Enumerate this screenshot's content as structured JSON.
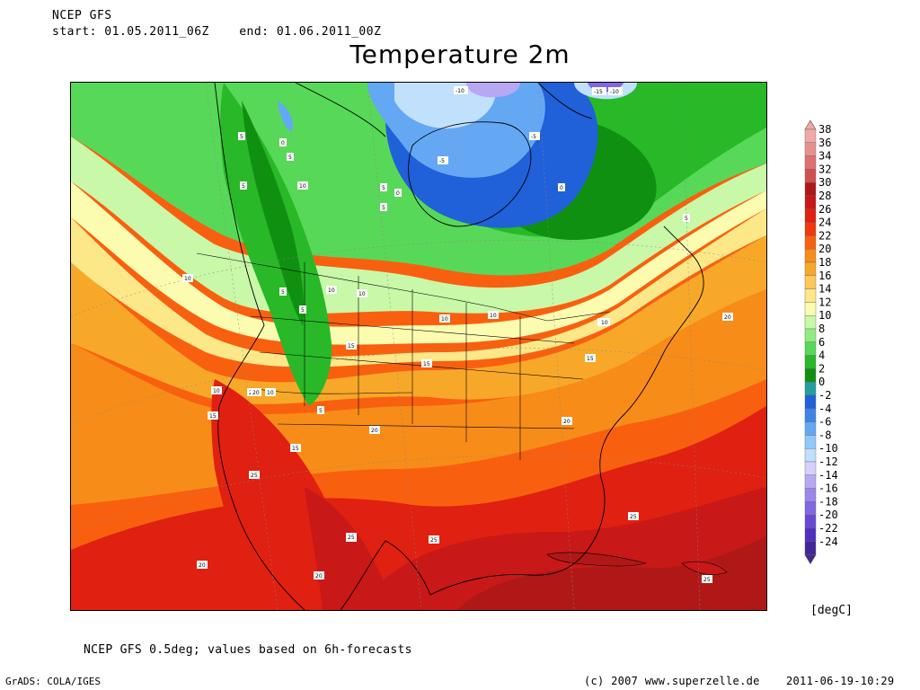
{
  "header": {
    "model": "NCEP GFS",
    "start": "start: 01.05.2011_06Z",
    "end": "end: 01.06.2011_00Z",
    "title": "Temperature 2m"
  },
  "legend": {
    "unit": "[degC]",
    "levels": [
      {
        "value": "38",
        "color": "#f0a8a8"
      },
      {
        "value": "36",
        "color": "#e89090"
      },
      {
        "value": "34",
        "color": "#e07070"
      },
      {
        "value": "32",
        "color": "#d05050"
      },
      {
        "value": "30",
        "color": "#b01818"
      },
      {
        "value": "28",
        "color": "#c81818"
      },
      {
        "value": "26",
        "color": "#e02010"
      },
      {
        "value": "24",
        "color": "#f03a0e"
      },
      {
        "value": "22",
        "color": "#f86010"
      },
      {
        "value": "20",
        "color": "#f88c18"
      },
      {
        "value": "18",
        "color": "#f8a828"
      },
      {
        "value": "16",
        "color": "#fcc858"
      },
      {
        "value": "14",
        "color": "#fce888"
      },
      {
        "value": "12",
        "color": "#fcfcb0"
      },
      {
        "value": "10",
        "color": "#c8f8a8"
      },
      {
        "value": "8",
        "color": "#90ec80"
      },
      {
        "value": "6",
        "color": "#58d858"
      },
      {
        "value": "4",
        "color": "#28b828"
      },
      {
        "value": "2",
        "color": "#109010"
      },
      {
        "value": "0",
        "color": "#20a0a0"
      },
      {
        "value": "-2",
        "color": "#2060d8"
      },
      {
        "value": "-4",
        "color": "#3c84e8"
      },
      {
        "value": "-6",
        "color": "#64a8f4"
      },
      {
        "value": "-8",
        "color": "#90c8f8"
      },
      {
        "value": "-10",
        "color": "#c0e0fc"
      },
      {
        "value": "-12",
        "color": "#d8d0fc"
      },
      {
        "value": "-14",
        "color": "#b8a8f4"
      },
      {
        "value": "-16",
        "color": "#9c88ec"
      },
      {
        "value": "-18",
        "color": "#8068e0"
      },
      {
        "value": "-20",
        "color": "#6848d4"
      },
      {
        "value": "-22",
        "color": "#5030c0"
      },
      {
        "value": "-24",
        "color": "#402898"
      }
    ]
  },
  "map": {
    "contour_labels": [
      "-10",
      "-15",
      "-10",
      "5",
      "-5",
      "0",
      "-5",
      "5",
      "0",
      "5",
      "10",
      "5",
      "0",
      "5",
      "5",
      "10",
      "10",
      "10",
      "10",
      "15",
      "10",
      "10",
      "15",
      "15",
      "20",
      "20",
      "20",
      "25",
      "25",
      "25",
      "20",
      "15",
      "20",
      "20",
      "10",
      "10",
      "5",
      "5",
      "25",
      "10",
      "5",
      "20",
      "25",
      "25",
      "15"
    ]
  },
  "footer": {
    "note": "NCEP GFS 0.5deg; values based on 6h-forecasts",
    "grads": "GrADS: COLA/IGES",
    "copyright": "(c) 2007 www.superzelle.de",
    "timestamp": "2011-06-19-10:29"
  }
}
